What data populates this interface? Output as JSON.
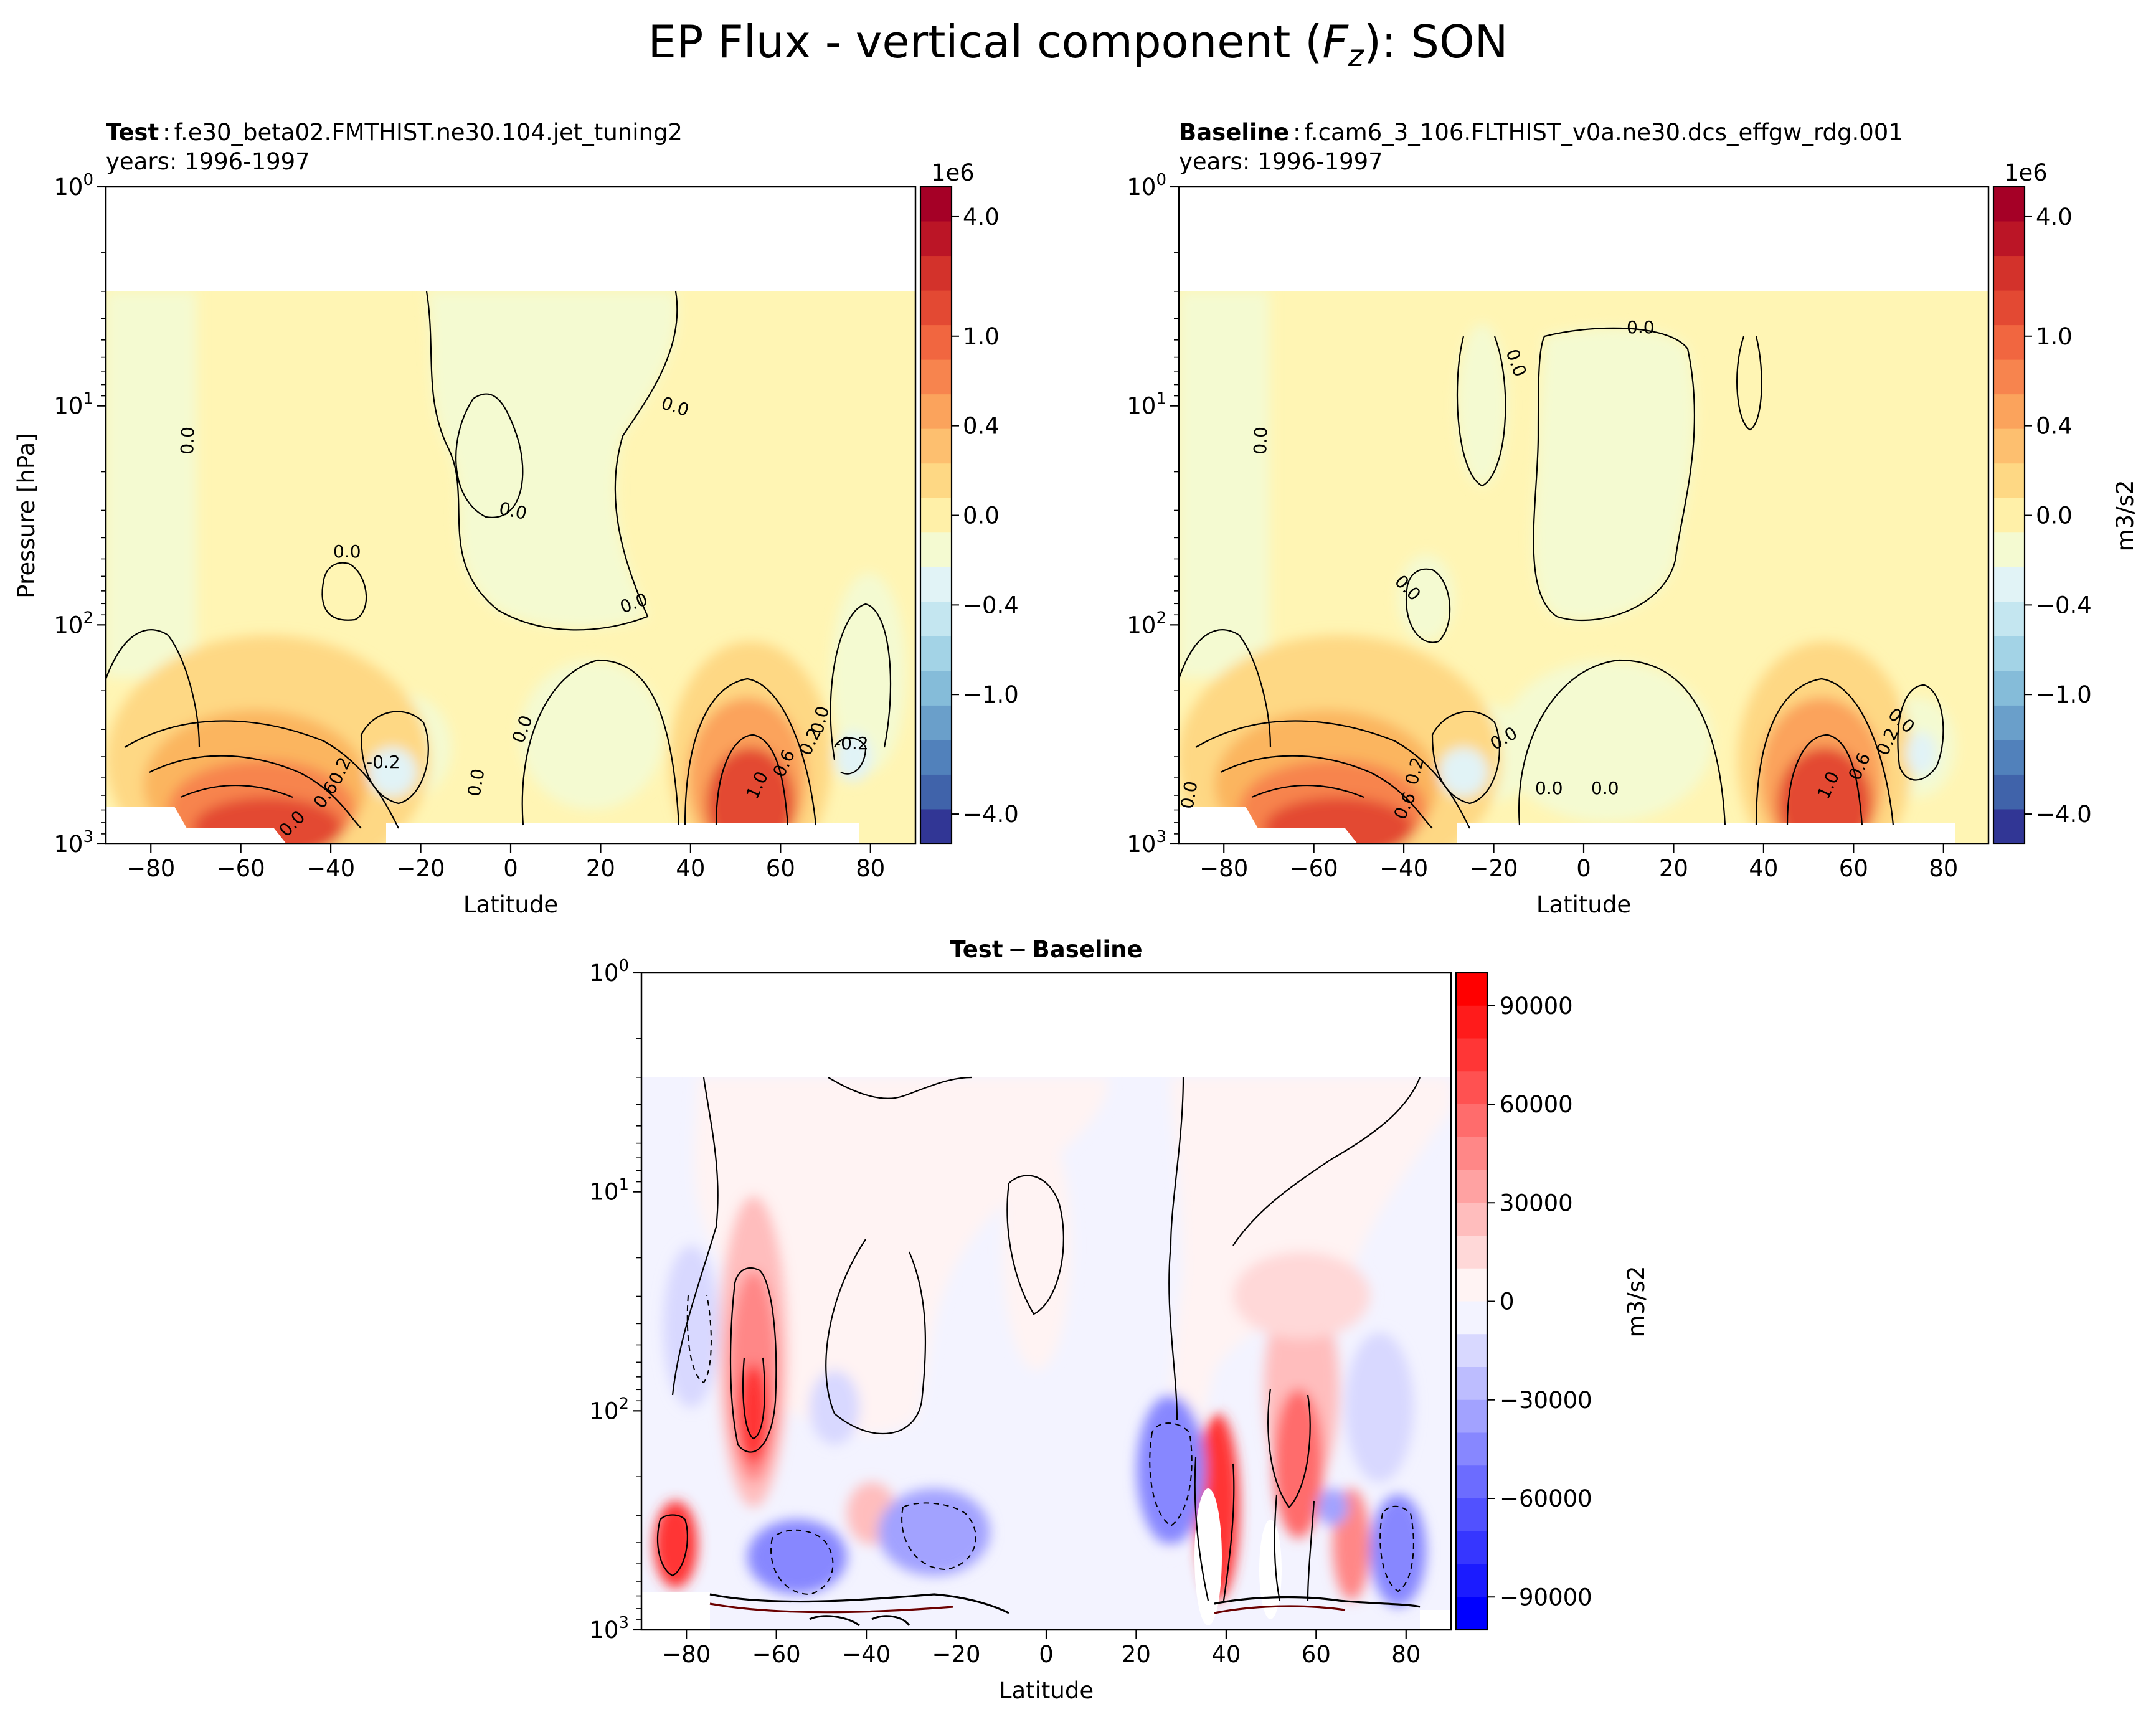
{
  "figure": {
    "title_prefix": "EP Flux - vertical component (",
    "title_symbol": "F",
    "title_subscript": "z",
    "title_suffix": "): SON"
  },
  "chart_data": [
    {
      "type": "heatmap",
      "panel": "test",
      "label_bold": "Test",
      "label_sep": ":",
      "case_name": "f.e30_beta02.FMTHIST.ne30.104.jet_tuning2",
      "years": "years: 1996-1997",
      "xlabel": "Latitude",
      "ylabel": "Pressure [hPa]",
      "xlim": [
        -90,
        90
      ],
      "ylim_hpa": [
        1000,
        1
      ],
      "yscale": "log",
      "x_ticks": [
        "−80",
        "−60",
        "−40",
        "−20",
        "0",
        "20",
        "40",
        "60",
        "80"
      ],
      "x_tick_values": [
        -80,
        -60,
        -40,
        -20,
        0,
        20,
        40,
        60,
        80
      ],
      "y_ticks": [
        {
          "base": "10",
          "exp": "0"
        },
        {
          "base": "10",
          "exp": "1"
        },
        {
          "base": "10",
          "exp": "2"
        },
        {
          "base": "10",
          "exp": "3"
        }
      ],
      "y_tick_values": [
        1,
        10,
        100,
        1000
      ],
      "colorbar": {
        "offset_label": "1e6",
        "ticks": [
          "4.0",
          "1.0",
          "0.4",
          "0.0",
          "−0.4",
          "−1.0",
          "−4.0"
        ],
        "units": "",
        "colors": [
          "#a50026",
          "#bb1526",
          "#d3322b",
          "#e34933",
          "#f16640",
          "#f7844e",
          "#fba35c",
          "#fdbf6f",
          "#fed884",
          "#fff0a8",
          "#f4fad1",
          "#e1f3f6",
          "#c4e6f0",
          "#a3d3e6",
          "#85bcd9",
          "#6a9fca",
          "#5181bb",
          "#4063aa",
          "#313695"
        ],
        "levels": [
          4.0,
          3.0,
          2.0,
          1.5,
          1.0,
          0.8,
          0.6,
          0.4,
          0.2,
          0.0,
          0.0,
          -0.2,
          -0.4,
          -0.6,
          -0.8,
          -1.0,
          -1.5,
          -2.0,
          -4.0
        ]
      },
      "contour_labels": [
        "0.0",
        "0.0",
        "0.0",
        "0.0",
        "0.0",
        "0.0",
        "0.0",
        "-0.2",
        "-0.2",
        "0.2",
        "0.6",
        "1.0",
        "0.6",
        "0.2",
        "0.0",
        "0.0"
      ]
    },
    {
      "type": "heatmap",
      "panel": "baseline",
      "label_bold": "Baseline",
      "label_sep": ":",
      "case_name": "f.cam6_3_106.FLTHIST_v0a.ne30.dcs_effgw_rdg.001",
      "years": "years: 1996-1997",
      "xlabel": "Latitude",
      "xlim": [
        -90,
        90
      ],
      "ylim_hpa": [
        1000,
        1
      ],
      "yscale": "log",
      "colorbar": {
        "offset_label": "1e6",
        "ticks": [
          "4.0",
          "1.0",
          "0.4",
          "0.0",
          "−0.4",
          "−1.0",
          "−4.0"
        ],
        "units": "m3/s2"
      },
      "contour_labels": [
        "0.0",
        "0.0",
        "0.0",
        "0.0",
        "0.0",
        "0.0",
        "0.0",
        "0.0",
        "0.0",
        "0.2",
        "0.6",
        "1.0",
        "0.6",
        "0.2"
      ]
    },
    {
      "type": "heatmap",
      "panel": "difference",
      "title_a": "Test",
      "title_op": "−",
      "title_b": "Baseline",
      "xlabel": "Latitude",
      "xlim": [
        -90,
        90
      ],
      "ylim_hpa": [
        1000,
        1
      ],
      "yscale": "log",
      "colorbar": {
        "ticks": [
          "90000",
          "60000",
          "30000",
          "0",
          "−30000",
          "−60000",
          "−90000"
        ],
        "tick_values": [
          90000,
          60000,
          30000,
          0,
          -30000,
          -60000,
          -90000
        ],
        "units": "m3/s2",
        "colors": [
          "#ff0000",
          "#ff1b1b",
          "#ff3636",
          "#ff5151",
          "#ff6c6c",
          "#ff8787",
          "#ffa2a2",
          "#ffbdbd",
          "#ffd8d8",
          "#fff3f3",
          "#f3f3ff",
          "#d8d8ff",
          "#bdbdff",
          "#a2a2ff",
          "#8787ff",
          "#6c6cff",
          "#5151ff",
          "#3636ff",
          "#1b1bff",
          "#0000ff"
        ]
      }
    }
  ]
}
